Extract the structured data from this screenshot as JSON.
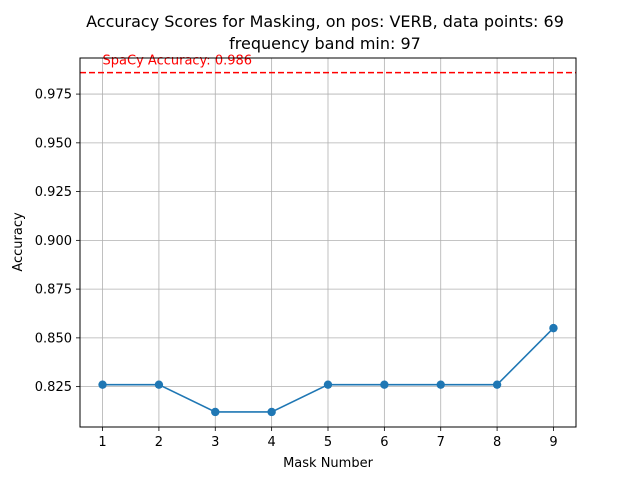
{
  "chart_data": {
    "type": "line",
    "title_lines": [
      "Accuracy Scores for Masking, on pos: VERB, data points: 69",
      "frequency band min: 97"
    ],
    "xlabel": "Mask Number",
    "ylabel": "Accuracy",
    "x": [
      1,
      2,
      3,
      4,
      5,
      6,
      7,
      8,
      9
    ],
    "series": [
      {
        "values": [
          0.826,
          0.826,
          0.812,
          0.812,
          0.826,
          0.826,
          0.826,
          0.826,
          0.855
        ],
        "color": "#1f77b4",
        "marker": "circle"
      }
    ],
    "xlim": [
      0.6,
      9.4
    ],
    "ylim": [
      0.8043,
      0.9935
    ],
    "xticks": [
      1,
      2,
      3,
      4,
      5,
      6,
      7,
      8,
      9
    ],
    "yticks": [
      0.825,
      0.85,
      0.875,
      0.9,
      0.925,
      0.95,
      0.975
    ],
    "ytick_labels": [
      "0.825",
      "0.850",
      "0.875",
      "0.900",
      "0.925",
      "0.950",
      "0.975"
    ],
    "grid": true,
    "reference_line": {
      "value": 0.986,
      "label": "SpaCy Accuracy: 0.986",
      "color": "#ff0000",
      "style": "dashed"
    }
  }
}
